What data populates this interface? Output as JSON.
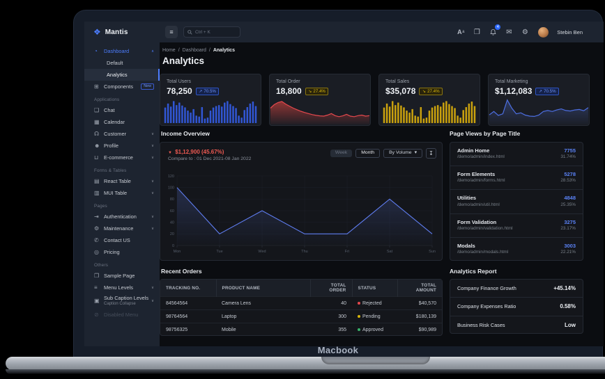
{
  "device": {
    "label": "Macbook"
  },
  "colors": {
    "accent_blue": "#4c7dff",
    "bar_blue": "#3156d3",
    "gold": "#c9a10e",
    "red": "#e5484d",
    "green": "#38b26a"
  },
  "icons": {
    "logo_glyph": "❖",
    "menu": "≡",
    "translate_main": "A",
    "translate_sub": "a",
    "window": "❐",
    "mail": "✉",
    "settings": "⚙",
    "download": "↧",
    "caret": "▾",
    "down_marker": "▼"
  },
  "header": {
    "search_placeholder": "Ctrl + K",
    "notification_count": "4",
    "user_name": "Stebin Ben"
  },
  "breadcrumb": {
    "items": [
      "Home",
      "Dashboard",
      "Analytics"
    ],
    "separator": "/"
  },
  "page": {
    "title": "Analytics"
  },
  "sidebar": {
    "logo_text": "Mantis",
    "groups": [
      {
        "label": "",
        "items": [
          {
            "label": "Dashboard",
            "glyph": "◔",
            "chevron": "∧"
          },
          {
            "label": "Default"
          },
          {
            "label": "Analytics"
          },
          {
            "label": "Components",
            "glyph": "⊞",
            "badge": "New"
          }
        ]
      },
      {
        "label": "Applications",
        "items": [
          {
            "label": "Chat",
            "glyph": "❑"
          },
          {
            "label": "Calendar",
            "glyph": "▦"
          },
          {
            "label": "Customer",
            "glyph": "☊",
            "chevron": "∨"
          },
          {
            "label": "Profile",
            "glyph": "☻",
            "chevron": "∨"
          },
          {
            "label": "E-commerce",
            "glyph": "⊔",
            "chevron": "∨"
          }
        ]
      },
      {
        "label": "Forms & Tables",
        "items": [
          {
            "label": "React Table",
            "glyph": "▤",
            "chevron": "∨"
          },
          {
            "label": "MUI Table",
            "glyph": "▥",
            "chevron": "∨"
          }
        ]
      },
      {
        "label": "Pages",
        "items": [
          {
            "label": "Authentication",
            "glyph": "⇥",
            "chevron": "∨"
          },
          {
            "label": "Maintenance",
            "glyph": "⚙",
            "chevron": "∨"
          },
          {
            "label": "Contact US",
            "glyph": "✆"
          },
          {
            "label": "Pricing",
            "glyph": "◎"
          }
        ]
      },
      {
        "label": "Others",
        "items": [
          {
            "label": "Sample Page",
            "glyph": "❒"
          },
          {
            "label": "Menu Levels",
            "glyph": "≡",
            "chevron": "∨"
          },
          {
            "label": "Sub Caption Levels",
            "caption": "Caption Collapse",
            "glyph": "▣",
            "chevron": "∨"
          },
          {
            "label": "Disabled Menu",
            "glyph": "⊘"
          }
        ]
      }
    ]
  },
  "stat_cards": [
    {
      "label": "Total Users",
      "value": "78,250",
      "arrow": "↗",
      "delta": "70.5%",
      "trend": "up"
    },
    {
      "label": "Total Order",
      "value": "18,800",
      "arrow": "↘",
      "delta": "27.4%",
      "trend": "down"
    },
    {
      "label": "Total Sales",
      "value": "$35,078",
      "arrow": "↘",
      "delta": "27.4%",
      "trend": "down"
    },
    {
      "label": "Total Marketing",
      "value": "$1,12,083",
      "arrow": "↗",
      "delta": "70.5%",
      "trend": "up"
    }
  ],
  "income": {
    "title": "Income Overview",
    "delta_value": "$1,12,900 (45.67%)",
    "compare": "Compare to : 01 Dec 2021-08 Jan 2022",
    "range_week": "Week",
    "range_month": "Month",
    "volume_label": "By Volume"
  },
  "page_views": {
    "title": "Page Views by Page Title",
    "rows": [
      {
        "name": "Admin Home",
        "path": "/demo/admin/index.html",
        "value": "7755",
        "pct": "31.74%"
      },
      {
        "name": "Form Elements",
        "path": "/demo/admin/forms.html",
        "value": "5278",
        "pct": "28.53%"
      },
      {
        "name": "Utilities",
        "path": "/demo/admin/util.html",
        "value": "4848",
        "pct": "25.35%"
      },
      {
        "name": "Form Validation",
        "path": "/demo/admin/validation.html",
        "value": "3275",
        "pct": "23.17%"
      },
      {
        "name": "Modals",
        "path": "/demo/admin/modals.html",
        "value": "3003",
        "pct": "22.21%"
      }
    ]
  },
  "orders": {
    "title": "Recent Orders",
    "columns": [
      "TRACKING NO.",
      "PRODUCT NAME",
      "TOTAL ORDER",
      "STATUS",
      "TOTAL AMOUNT"
    ],
    "rows": [
      {
        "tracking": "84564564",
        "product": "Camera Lens",
        "total": "40",
        "status": "Rejected",
        "status_color": "#e5484d",
        "amount": "$40,570"
      },
      {
        "tracking": "98764564",
        "product": "Laptop",
        "total": "300",
        "status": "Pending",
        "status_color": "#d8b60b",
        "amount": "$180,139"
      },
      {
        "tracking": "98756325",
        "product": "Mobile",
        "total": "355",
        "status": "Approved",
        "status_color": "#38b26a",
        "amount": "$90,989"
      }
    ]
  },
  "report": {
    "title": "Analytics Report",
    "rows": [
      {
        "label": "Company Finance Growth",
        "value": "+45.14%"
      },
      {
        "label": "Company Expenses Ratio",
        "value": "0.58%"
      },
      {
        "label": "Business Risk Cases",
        "value": "Low"
      }
    ]
  },
  "chart_data": [
    {
      "id": "users-spark",
      "type": "bar",
      "title": "Total Users sparkline",
      "color": "#3156d3",
      "ylim": [
        0,
        100
      ],
      "values": [
        62,
        78,
        66,
        88,
        72,
        82,
        70,
        63,
        50,
        42,
        56,
        30,
        26,
        64,
        18,
        22,
        50,
        62,
        68,
        72,
        66,
        82,
        88,
        76,
        68,
        60,
        30,
        22,
        52,
        64,
        78,
        86,
        68
      ]
    },
    {
      "id": "orders-spark",
      "type": "area",
      "title": "Total Order sparkline",
      "color": "#e5484d",
      "fill": "#a63a38",
      "ylim": [
        0,
        100
      ],
      "values": [
        58,
        72,
        80,
        84,
        74,
        66,
        58,
        52,
        46,
        41,
        37,
        33,
        30,
        28,
        27,
        31,
        37,
        29,
        25,
        28,
        34,
        27,
        25,
        29,
        31,
        27,
        29
      ]
    },
    {
      "id": "sales-spark",
      "type": "bar",
      "title": "Total Sales sparkline",
      "color": "#c9a10e",
      "ylim": [
        0,
        100
      ],
      "values": [
        62,
        78,
        66,
        88,
        72,
        82,
        70,
        63,
        50,
        42,
        56,
        30,
        26,
        64,
        18,
        22,
        50,
        62,
        68,
        72,
        66,
        82,
        88,
        76,
        68,
        60,
        30,
        22,
        52,
        64,
        78,
        86,
        68
      ]
    },
    {
      "id": "marketing-spark",
      "type": "area",
      "title": "Total Marketing sparkline",
      "color": "#4d6fe3",
      "fill": "#32406b",
      "ylim": [
        0,
        100
      ],
      "values": [
        32,
        45,
        30,
        36,
        90,
        58,
        36,
        40,
        31,
        27,
        26,
        31,
        45,
        49,
        45,
        51,
        55,
        49,
        47,
        51,
        53,
        48,
        60
      ]
    },
    {
      "id": "income-week",
      "type": "line",
      "title": "Income Overview",
      "legend_position": "none",
      "grid": true,
      "categories": [
        "Mon",
        "Tue",
        "Wed",
        "Thu",
        "Fri",
        "Sat",
        "Sun"
      ],
      "values": [
        100,
        20,
        60,
        20,
        20,
        80,
        20
      ],
      "y_ticks": [
        0,
        20,
        40,
        60,
        80,
        100,
        120
      ],
      "ylim": [
        0,
        120
      ],
      "color": "#5f7df0",
      "fill": "#33406e",
      "xlabel": "",
      "ylabel": ""
    }
  ]
}
